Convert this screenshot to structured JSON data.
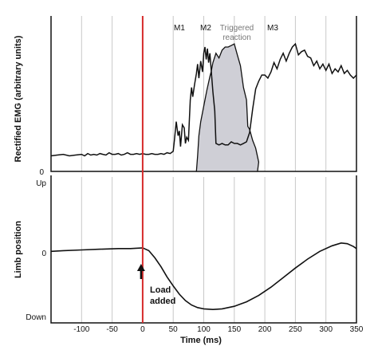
{
  "chart_data": [
    {
      "type": "line",
      "panel": "emg",
      "ylabel": "Rectified EMG (arbitrary units)",
      "y_tick_labels": [
        "0"
      ],
      "xlim": [
        -150,
        350
      ],
      "ylim": [
        0,
        10
      ],
      "x_ticks": [
        -100,
        -50,
        0,
        50,
        100,
        150,
        200,
        250,
        300,
        350
      ],
      "grid": "vertical",
      "annotations": {
        "m1": "M1",
        "m2": "M2",
        "triggered": [
          "Triggered",
          "reaction"
        ],
        "m3": "M3"
      },
      "series": [
        {
          "values_x": [
            -150,
            -140,
            -130,
            -120,
            -110,
            -100,
            -95,
            -90,
            -85,
            -80,
            -75,
            -70,
            -65,
            -60,
            -55,
            -50,
            -45,
            -40,
            -35,
            -30,
            -25,
            -20,
            -15,
            -10,
            -5,
            0,
            5,
            10,
            15,
            20,
            25,
            30,
            35,
            40,
            45,
            50,
            52,
            55,
            58,
            60,
            62,
            65,
            68,
            70,
            72,
            75,
            78,
            80,
            82,
            85,
            88,
            90,
            92,
            95,
            98,
            100,
            102,
            104,
            106,
            108,
            110,
            112,
            115,
            118,
            120,
            125,
            130,
            135,
            140,
            145,
            150,
            155,
            160,
            165,
            170,
            175,
            180,
            185,
            190,
            195,
            200,
            205,
            210,
            215,
            220,
            225,
            230,
            235,
            240,
            245,
            250,
            255,
            260,
            265,
            270,
            275,
            280,
            285,
            290,
            295,
            300,
            305,
            310,
            315,
            320,
            325,
            330,
            335,
            340,
            345,
            350
          ],
          "values_y": [
            1.0,
            1.05,
            1.1,
            1.0,
            1.05,
            1.1,
            1.0,
            1.15,
            1.05,
            1.1,
            1.05,
            1.15,
            1.1,
            1.05,
            1.2,
            1.1,
            1.1,
            1.15,
            1.05,
            1.1,
            1.2,
            1.1,
            1.1,
            1.15,
            1.1,
            1.15,
            1.1,
            1.1,
            1.15,
            1.1,
            1.1,
            1.15,
            1.1,
            1.2,
            1.15,
            1.3,
            2.0,
            3.2,
            2.3,
            2.6,
            1.6,
            3.0,
            2.8,
            1.8,
            2.2,
            2.0,
            4.6,
            5.4,
            4.8,
            5.6,
            6.3,
            6.9,
            6.0,
            7.1,
            6.4,
            7.6,
            8.0,
            7.2,
            7.9,
            7.0,
            7.6,
            6.6,
            5.1,
            3.9,
            1.8,
            1.7,
            1.8,
            1.7,
            1.7,
            1.9,
            1.8,
            1.8,
            1.7,
            1.8,
            1.9,
            2.5,
            4.0,
            5.3,
            5.8,
            6.2,
            6.2,
            6.0,
            6.4,
            7.0,
            6.6,
            7.2,
            7.6,
            7.1,
            7.6,
            8.0,
            8.2,
            7.5,
            7.7,
            7.8,
            7.4,
            7.3,
            6.8,
            7.1,
            6.6,
            6.9,
            6.5,
            6.9,
            6.3,
            6.6,
            6.4,
            6.8,
            6.3,
            6.5,
            6.2,
            6.0,
            6.2
          ]
        },
        {
          "name": "Triggered reaction",
          "values_x": [
            88,
            90,
            92,
            95,
            100,
            105,
            110,
            112,
            115,
            120,
            125,
            130,
            135,
            140,
            145,
            150,
            155,
            160,
            165,
            170,
            172,
            175,
            180,
            185,
            190,
            188
          ],
          "values_y": [
            0,
            1.0,
            2.3,
            3.2,
            4.2,
            5.2,
            6.1,
            6.4,
            7.0,
            7.6,
            7.3,
            7.8,
            8.0,
            8.0,
            8.1,
            8.2,
            7.5,
            6.8,
            5.4,
            4.6,
            2.9,
            2.7,
            2.0,
            1.5,
            0.6,
            0
          ]
        }
      ]
    },
    {
      "type": "line",
      "panel": "limb",
      "ylabel": "Limb position",
      "xlabel": "Time (ms)",
      "y_tick_labels": [
        "Up",
        "0",
        "Down"
      ],
      "xlim": [
        -150,
        350
      ],
      "ylim": [
        -1,
        1
      ],
      "x_ticks": [
        -100,
        -50,
        0,
        50,
        100,
        150,
        200,
        250,
        300,
        350
      ],
      "x_tick_labels": [
        "-100",
        "-50",
        "0",
        "50",
        "100",
        "150",
        "200",
        "250",
        "300",
        "350"
      ],
      "grid": "vertical",
      "load_label": [
        "Load",
        "added"
      ],
      "load_time_ms": 0,
      "series": [
        {
          "values_x": [
            -150,
            -130,
            -100,
            -70,
            -40,
            -20,
            0,
            10,
            20,
            30,
            40,
            50,
            60,
            70,
            80,
            90,
            100,
            115,
            130,
            150,
            170,
            190,
            210,
            230,
            250,
            270,
            290,
            310,
            325,
            335,
            345,
            350
          ],
          "values_y": [
            0.02,
            0.03,
            0.04,
            0.05,
            0.06,
            0.06,
            0.07,
            0.03,
            -0.08,
            -0.22,
            -0.38,
            -0.52,
            -0.65,
            -0.75,
            -0.82,
            -0.86,
            -0.88,
            -0.89,
            -0.88,
            -0.84,
            -0.77,
            -0.67,
            -0.54,
            -0.39,
            -0.24,
            -0.1,
            0.02,
            0.1,
            0.14,
            0.13,
            0.09,
            0.06
          ]
        }
      ]
    }
  ]
}
